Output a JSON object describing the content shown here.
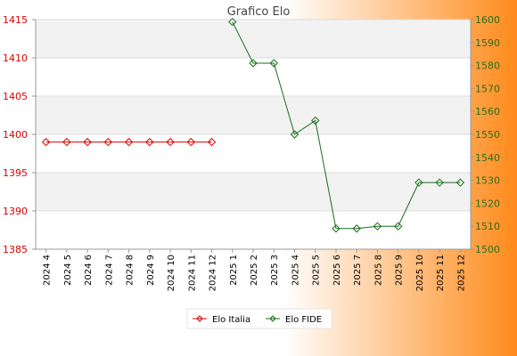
{
  "chart_data": {
    "type": "line",
    "title": "Grafico Elo",
    "categories": [
      "2024 4",
      "2024 5",
      "2024 6",
      "2024 7",
      "2024 8",
      "2024 9",
      "2024 10",
      "2024 11",
      "2024 12",
      "2025 1",
      "2025 2",
      "2025 3",
      "2025 4",
      "2025 5",
      "2025 6",
      "2025 7",
      "2025 8",
      "2025 9",
      "2025 10",
      "2025 11",
      "2025 12"
    ],
    "y_left": {
      "ticks": [
        1385,
        1390,
        1395,
        1400,
        1405,
        1410,
        1415
      ],
      "range": [
        1385,
        1415
      ]
    },
    "y_right": {
      "ticks": [
        1500,
        1510,
        1520,
        1530,
        1540,
        1550,
        1560,
        1570,
        1580,
        1590,
        1600
      ],
      "range": [
        1500,
        1600
      ]
    },
    "series": [
      {
        "name": "Elo Italia",
        "axis": "left",
        "color": "#dd0000",
        "values": [
          1399,
          1399,
          1399,
          1399,
          1399,
          1399,
          1399,
          1399,
          1399,
          null,
          null,
          null,
          null,
          null,
          null,
          null,
          null,
          null,
          null,
          null,
          null
        ]
      },
      {
        "name": "Elo FIDE",
        "axis": "right",
        "color": "#1a6e1a",
        "values": [
          null,
          null,
          null,
          null,
          null,
          null,
          null,
          null,
          null,
          1599,
          1581,
          1581,
          1550,
          1556,
          1509,
          1509,
          1510,
          1510,
          1529,
          1529,
          1529
        ]
      }
    ],
    "grid": true,
    "legend": "bottom"
  },
  "colors": {
    "band": "#f2f2f2",
    "plot_bg": "#ffffff",
    "gradient_start": "#ffffff",
    "gradient_end": "#ff8a1a"
  }
}
